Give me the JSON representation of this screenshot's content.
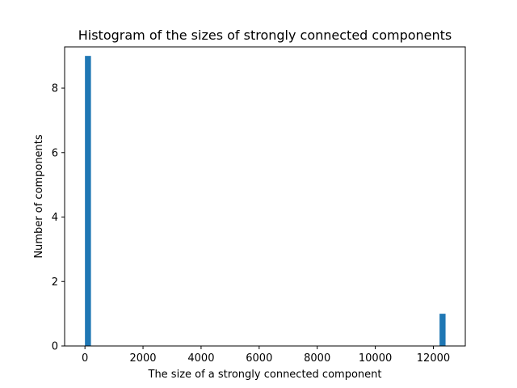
{
  "chart_data": {
    "type": "bar",
    "title": "Histogram of the sizes of strongly connected components",
    "xlabel": "The size of a strongly connected component",
    "ylabel": "Number of components",
    "xlim": [
      -700,
      13100
    ],
    "ylim": [
      0,
      9.0
    ],
    "xticks": [
      0,
      2000,
      4000,
      6000,
      8000,
      10000,
      12000
    ],
    "xtick_labels": [
      "0",
      "2000",
      "4000",
      "6000",
      "8000",
      "10000",
      "12000"
    ],
    "yticks": [
      0,
      2,
      4,
      6,
      8
    ],
    "ytick_labels": [
      "0",
      "2",
      "4",
      "6",
      "8"
    ],
    "bin_width": 207,
    "bars": [
      {
        "x_start": 0,
        "x_end": 207,
        "count": 9
      },
      {
        "x_start": 12213,
        "x_end": 12420,
        "count": 1
      }
    ],
    "color": "#1f77b4",
    "grid": false,
    "legend": "none"
  }
}
